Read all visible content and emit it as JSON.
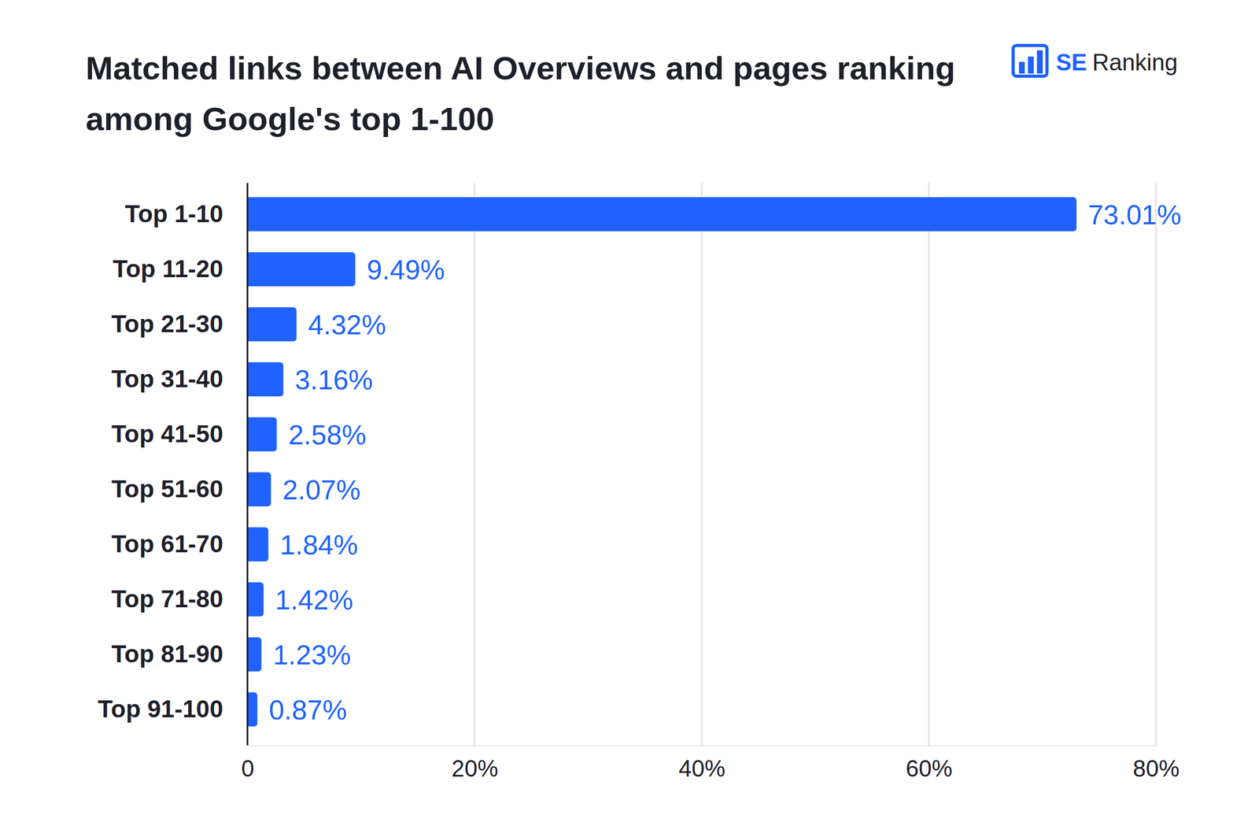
{
  "chart_data": {
    "type": "bar",
    "orientation": "horizontal",
    "title": "Matched links between AI Overviews and pages ranking among Google's top 1-100",
    "annotations": [
      "SE",
      "Ranking"
    ],
    "categories": [
      "Top 1-10",
      "Top 11-20",
      "Top 21-30",
      "Top 31-40",
      "Top 41-50",
      "Top 51-60",
      "Top 61-70",
      "Top 71-80",
      "Top 81-90",
      "Top 91-100"
    ],
    "values": [
      73.01,
      9.49,
      4.32,
      3.16,
      2.58,
      2.07,
      1.84,
      1.42,
      1.23,
      0.87
    ],
    "value_labels": [
      "73.01%",
      "9.49%",
      "4.32%",
      "3.16%",
      "2.58%",
      "2.07%",
      "1.84%",
      "1.42%",
      "1.23%",
      "0.87%"
    ],
    "color": "#1f62ff",
    "xlim": [
      0,
      80
    ],
    "xticks": [
      0,
      {
        "value": 20,
        "label": "20%"
      },
      {
        "value": 40,
        "label": "40%"
      },
      {
        "value": 60,
        "label": "60%"
      },
      {
        "value": 80,
        "label": "80%"
      }
    ],
    "grid": true,
    "data_labels": true
  }
}
